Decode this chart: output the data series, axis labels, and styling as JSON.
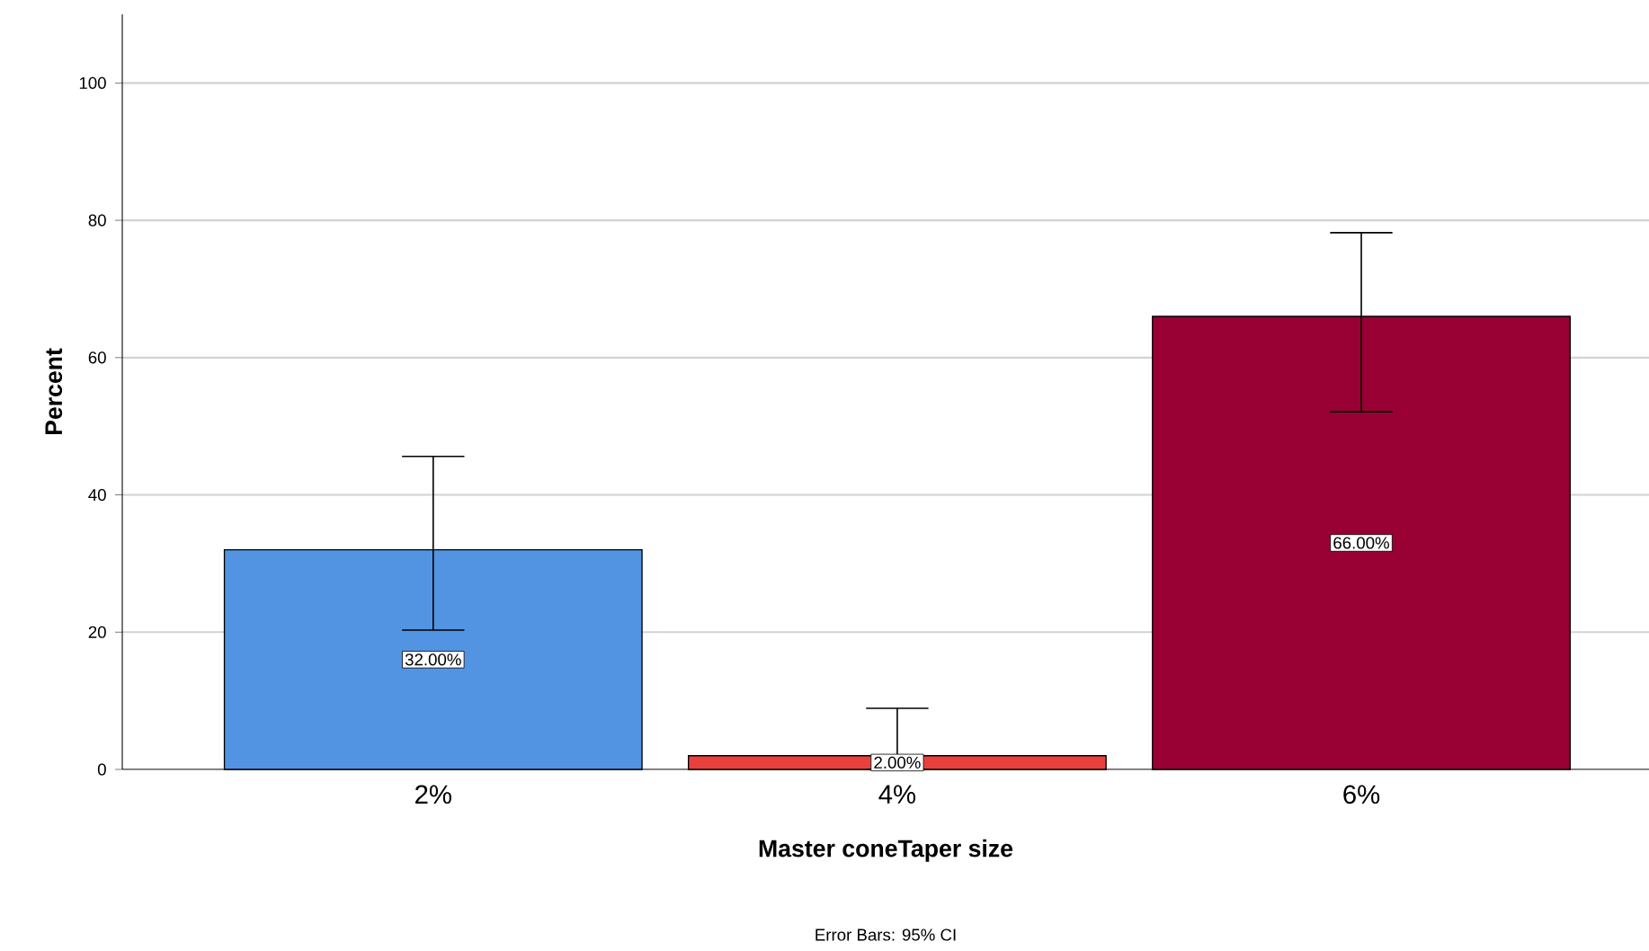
{
  "chart_data": {
    "type": "bar",
    "xlabel": "Master coneTaper size",
    "ylabel": "Percent",
    "categories": [
      "2%",
      "4%",
      "6%"
    ],
    "values": [
      32,
      2,
      66
    ],
    "colors": [
      "#5294e2",
      "#e8413c",
      "#990033"
    ],
    "errors": [
      [
        20.3,
        45.6
      ],
      [
        0,
        8.9
      ],
      [
        52.1,
        78.2
      ]
    ],
    "value_labels": [
      "32.00%",
      "2.00%",
      "66.00%"
    ],
    "ylim": [
      0,
      110
    ],
    "yticks": [
      0,
      20,
      40,
      60,
      80,
      100
    ],
    "grid": "y",
    "annotations": [
      "Error Bars: 95% CI"
    ]
  }
}
